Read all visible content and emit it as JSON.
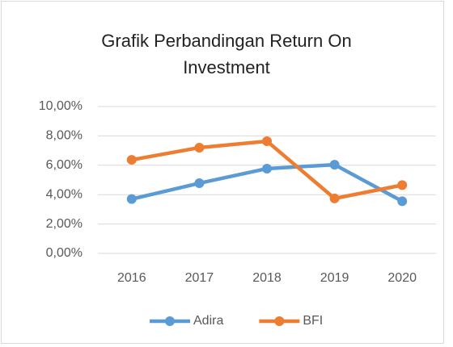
{
  "chart_data": {
    "type": "line",
    "title": "Grafik Perbandingan Return On Investment",
    "categories": [
      "2016",
      "2017",
      "2018",
      "2019",
      "2020"
    ],
    "series": [
      {
        "name": "Adira",
        "color": "#5b9bd5",
        "values": [
          3.7,
          4.78,
          5.77,
          6.04,
          3.55
        ]
      },
      {
        "name": "BFI",
        "color": "#ed7d31",
        "values": [
          6.37,
          7.2,
          7.64,
          3.74,
          4.65
        ]
      }
    ],
    "ylim": [
      0,
      10
    ],
    "yticks": [
      {
        "value": 0,
        "label": "0,00%"
      },
      {
        "value": 2,
        "label": "2,00%"
      },
      {
        "value": 4,
        "label": "4,00%"
      },
      {
        "value": 6,
        "label": "6,00%"
      },
      {
        "value": 8,
        "label": "8,00%"
      },
      {
        "value": 10,
        "label": "10,00%"
      }
    ],
    "grid": true,
    "legend": "bottom"
  }
}
